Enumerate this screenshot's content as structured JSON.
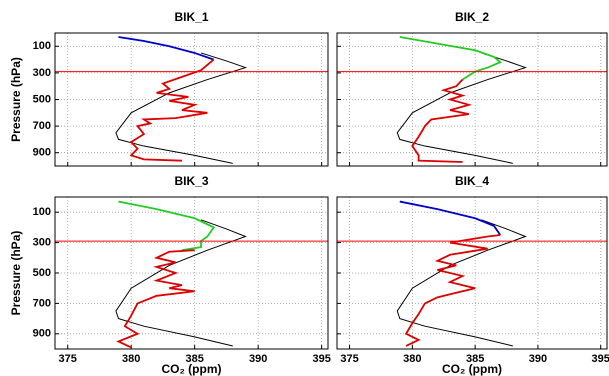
{
  "chart_data": [
    {
      "type": "line",
      "title": "BIK_1",
      "y_label": "Pressure (hPa)",
      "xlim": [
        374,
        395.5
      ],
      "xticks": [
        375,
        380,
        385,
        390,
        395
      ],
      "show_xtick_labels": false,
      "ylim": [
        1000,
        0
      ],
      "yticks": [
        100,
        300,
        500,
        700,
        900
      ],
      "show_ytick_labels": true,
      "grid": true,
      "reference_line": {
        "value": 290,
        "color": "#ff0000"
      },
      "series": [
        {
          "color": "#000000",
          "x": [
            385.5,
            387.5,
            389,
            386,
            383,
            380,
            378.8,
            379,
            381,
            385,
            388
          ],
          "values": [
            150,
            210,
            260,
            350,
            450,
            600,
            750,
            800,
            850,
            920,
            980
          ]
        },
        {
          "color": "#0000cc",
          "x": [
            379,
            381,
            383,
            385,
            386.5
          ],
          "values": [
            30,
            60,
            100,
            150,
            200
          ]
        },
        {
          "color": "#dd0000",
          "x": [
            386.5,
            385.5,
            384,
            382.5,
            383,
            382,
            384.5,
            383,
            385,
            384,
            386,
            383.5,
            381,
            381.5,
            380.5,
            381,
            380,
            380.5,
            380,
            381,
            384
          ],
          "values": [
            200,
            280,
            330,
            380,
            420,
            450,
            480,
            510,
            540,
            580,
            600,
            640,
            650,
            680,
            700,
            760,
            820,
            870,
            920,
            950,
            960
          ]
        }
      ]
    },
    {
      "type": "line",
      "title": "BIK_2",
      "xlim": [
        374,
        395.5
      ],
      "xticks": [
        375,
        380,
        385,
        390,
        395
      ],
      "show_xtick_labels": false,
      "ylim": [
        1000,
        0
      ],
      "yticks": [
        100,
        300,
        500,
        700,
        900
      ],
      "show_ytick_labels": false,
      "grid": true,
      "reference_line": {
        "value": 290,
        "color": "#ff0000"
      },
      "series": [
        {
          "color": "#000000",
          "x": [
            385.5,
            387.5,
            389,
            386,
            383,
            380,
            378.8,
            379,
            381,
            385,
            388
          ],
          "values": [
            150,
            210,
            260,
            350,
            450,
            600,
            750,
            800,
            850,
            920,
            980
          ]
        },
        {
          "color": "#22cc22",
          "x": [
            379,
            382,
            385,
            386.5,
            387,
            386,
            385,
            384
          ],
          "values": [
            30,
            80,
            130,
            180,
            220,
            260,
            290,
            350
          ]
        },
        {
          "color": "#dd0000",
          "x": [
            384,
            383.5,
            382.5,
            384,
            383,
            384.5,
            383,
            384.5,
            381.5,
            381,
            380.5,
            380,
            380.5,
            380.5,
            384
          ],
          "values": [
            350,
            400,
            430,
            470,
            500,
            540,
            580,
            610,
            650,
            700,
            780,
            850,
            920,
            960,
            970
          ]
        }
      ]
    },
    {
      "type": "line",
      "title": "BIK_3",
      "y_label": "Pressure (hPa)",
      "x_label": "CO₂ (ppm)",
      "xlim": [
        374,
        395.5
      ],
      "xticks": [
        375,
        380,
        385,
        390,
        395
      ],
      "show_xtick_labels": true,
      "ylim": [
        1000,
        0
      ],
      "yticks": [
        100,
        300,
        500,
        700,
        900
      ],
      "show_ytick_labels": true,
      "grid": true,
      "reference_line": {
        "value": 290,
        "color": "#ff0000"
      },
      "series": [
        {
          "color": "#000000",
          "x": [
            385.5,
            387.5,
            389,
            386,
            383,
            380,
            378.8,
            379,
            381,
            385,
            388
          ],
          "values": [
            150,
            210,
            260,
            350,
            450,
            600,
            750,
            800,
            850,
            920,
            980
          ]
        },
        {
          "color": "#22cc22",
          "x": [
            379,
            382,
            385,
            386.5,
            386,
            385.5,
            385.5,
            384
          ],
          "values": [
            30,
            80,
            140,
            200,
            260,
            290,
            330,
            350
          ]
        },
        {
          "color": "#dd0000",
          "x": [
            385,
            383,
            382,
            383.5,
            382,
            383.5,
            382,
            384,
            383,
            385,
            382,
            380.5,
            380,
            379.5,
            380.5,
            379,
            380
          ],
          "values": [
            350,
            360,
            400,
            430,
            460,
            500,
            550,
            580,
            600,
            620,
            650,
            700,
            780,
            850,
            900,
            950,
            990
          ]
        }
      ]
    },
    {
      "type": "line",
      "title": "BIK_4",
      "x_label": "CO₂ (ppm)",
      "xlim": [
        374,
        395.5
      ],
      "xticks": [
        375,
        380,
        385,
        390,
        395
      ],
      "show_xtick_labels": true,
      "ylim": [
        1000,
        0
      ],
      "yticks": [
        100,
        300,
        500,
        700,
        900
      ],
      "show_ytick_labels": false,
      "grid": true,
      "reference_line": {
        "value": 290,
        "color": "#ff0000"
      },
      "series": [
        {
          "color": "#000000",
          "x": [
            385.5,
            387.5,
            389,
            386,
            383,
            380,
            378.8,
            379,
            381,
            385,
            388
          ],
          "values": [
            150,
            210,
            260,
            350,
            450,
            600,
            750,
            800,
            850,
            920,
            980
          ]
        },
        {
          "color": "#0000cc",
          "x": [
            379,
            382,
            385,
            386.5,
            387
          ],
          "values": [
            30,
            80,
            140,
            190,
            250
          ]
        },
        {
          "color": "#dd0000",
          "x": [
            387,
            386,
            383,
            386,
            383,
            382,
            383.5,
            382,
            384,
            383,
            385,
            383.5,
            382,
            381,
            380.5,
            380,
            379.5,
            380.5,
            379.5
          ],
          "values": [
            250,
            260,
            300,
            340,
            380,
            420,
            450,
            480,
            520,
            560,
            600,
            630,
            660,
            700,
            770,
            830,
            900,
            940,
            980
          ]
        }
      ]
    }
  ]
}
